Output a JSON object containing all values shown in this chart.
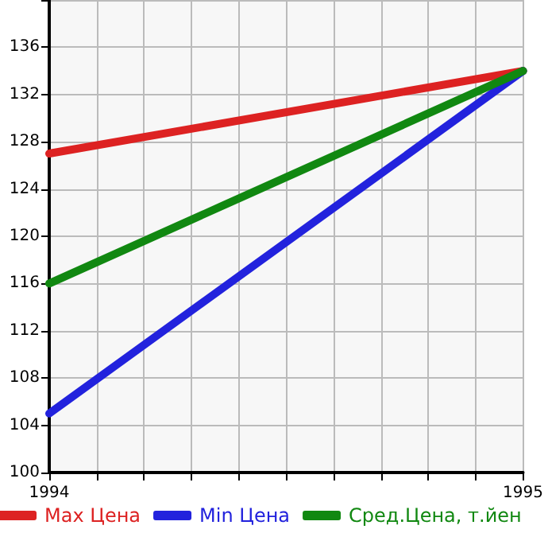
{
  "chart_data": {
    "type": "line",
    "x": [
      1994,
      1995
    ],
    "series": [
      {
        "name": "Max Цена",
        "color": "#dd2222",
        "values": [
          127,
          134
        ]
      },
      {
        "name": "Min Цена",
        "color": "#2222dd",
        "values": [
          105,
          134
        ]
      },
      {
        "name": "Сред.Цена, т.йен",
        "color": "#118811",
        "values": [
          116,
          134
        ]
      }
    ],
    "xlim": [
      1994,
      1995
    ],
    "xticks": [
      1994,
      {
        "value": 1994.1,
        "label": null
      },
      {
        "value": 1994.2,
        "label": null
      },
      {
        "value": 1994.3,
        "label": null
      },
      {
        "value": 1994.4,
        "label": null
      },
      {
        "value": 1994.5,
        "label": null
      },
      {
        "value": 1994.6,
        "label": null
      },
      {
        "value": 1994.7,
        "label": null
      },
      {
        "value": 1994.8,
        "label": null
      },
      {
        "value": 1994.9,
        "label": null
      },
      1995
    ],
    "ylim": [
      100,
      140
    ],
    "yticks": [
      100,
      104,
      108,
      112,
      116,
      120,
      124,
      128,
      132,
      136,
      {
        "value": 140,
        "label": null
      }
    ],
    "grid": true,
    "legend": "bottom",
    "marker": "none",
    "line_style": "solid"
  }
}
